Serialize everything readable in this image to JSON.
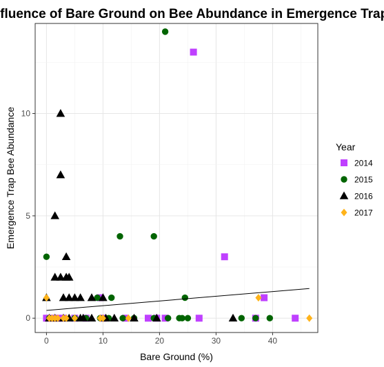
{
  "chart_data": {
    "type": "scatter",
    "title": "Influence of Bare Ground on Bee Abundance in Emergence Traps",
    "xlabel": "Bare Ground (%)",
    "ylabel": "Emergence Trap Bee Abundance",
    "xlim": [
      -2,
      48
    ],
    "ylim": [
      -0.7,
      14.4
    ],
    "x_ticks": [
      0,
      10,
      20,
      30,
      40
    ],
    "y_ticks": [
      0,
      5,
      10
    ],
    "grid": true,
    "legend": {
      "title": "Year",
      "position": "right"
    },
    "series": [
      {
        "name": "2014",
        "color": "#BF40FF",
        "shape": "square",
        "x": [
          26,
          31.5,
          38.5,
          9.5,
          0,
          1,
          2,
          3,
          5,
          7,
          10,
          14,
          18,
          19.5,
          21,
          27,
          37,
          44
        ],
        "y": [
          13,
          3,
          1,
          1,
          0,
          0,
          0,
          0,
          0,
          0,
          0,
          0,
          0,
          0,
          0,
          0,
          0,
          0
        ]
      },
      {
        "name": "2015",
        "color": "#006400",
        "shape": "circle",
        "x": [
          21,
          13,
          19,
          0,
          24.5,
          9,
          11.5,
          0.5,
          5,
          7,
          9.5,
          11,
          13.5,
          15.5,
          19,
          21.5,
          23.5,
          24,
          25,
          34.5,
          37,
          39.5
        ],
        "y": [
          14,
          4,
          4,
          3,
          1,
          1,
          1,
          0,
          0,
          0,
          0,
          0,
          0,
          0,
          0,
          0,
          0,
          0,
          0,
          0,
          0,
          0
        ]
      },
      {
        "name": "2016",
        "color": "#000000",
        "shape": "triangle",
        "x": [
          2.5,
          2.5,
          1.5,
          3.5,
          1.5,
          2.5,
          3.5,
          4,
          0,
          3,
          4,
          5,
          6,
          8,
          10,
          0.5,
          1.5,
          3,
          4,
          6,
          6.5,
          8,
          10.5,
          12,
          15.5,
          19.5,
          33
        ],
        "y": [
          10,
          7,
          5,
          3,
          2,
          2,
          2,
          2,
          1,
          1,
          1,
          1,
          1,
          1,
          1,
          0,
          0,
          0,
          0,
          0,
          0,
          0,
          0,
          0,
          0,
          0,
          0
        ]
      },
      {
        "name": "2017",
        "color": "#FFB31A",
        "shape": "diamond",
        "x": [
          0,
          37.5,
          0.5,
          1,
          1.5,
          2,
          3,
          3.5,
          5,
          9.5,
          10,
          14.5,
          46.5
        ],
        "y": [
          1,
          1,
          0,
          0,
          0,
          0,
          0,
          0,
          0,
          0,
          0,
          0,
          0
        ]
      }
    ],
    "trendline": {
      "x": [
        0,
        46.5
      ],
      "y": [
        0.38,
        1.45
      ]
    }
  }
}
